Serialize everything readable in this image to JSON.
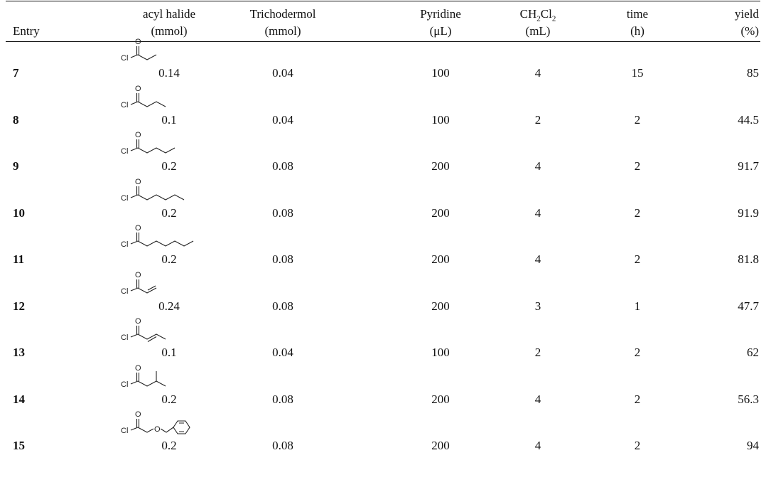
{
  "headers": {
    "entry": [
      "",
      "Entry"
    ],
    "acyl": [
      "acyl halide",
      "(mmol)"
    ],
    "tri": [
      "Trichodermol",
      "(mmol)"
    ],
    "pyr": [
      "Pyridine",
      "(μL)"
    ],
    "ch2": [
      "CH2Cl2",
      "(mL)"
    ],
    "time": [
      "time",
      "(h)"
    ],
    "yield": [
      "yield",
      "(%)"
    ]
  },
  "atom_labels": {
    "chlorine": "Cl",
    "oxygen": "O"
  },
  "rows": [
    {
      "entry": "7",
      "acyl": "0.14",
      "tri": "0.04",
      "pyr": "100",
      "ch2": "4",
      "time": "15",
      "yield": "85",
      "acyl_structure": "propionyl chloride"
    },
    {
      "entry": "8",
      "acyl": "0.1",
      "tri": "0.04",
      "pyr": "100",
      "ch2": "2",
      "time": "2",
      "yield": "44.5",
      "acyl_structure": "butyryl chloride"
    },
    {
      "entry": "9",
      "acyl": "0.2",
      "tri": "0.08",
      "pyr": "200",
      "ch2": "4",
      "time": "2",
      "yield": "91.7",
      "acyl_structure": "valeryl chloride"
    },
    {
      "entry": "10",
      "acyl": "0.2",
      "tri": "0.08",
      "pyr": "200",
      "ch2": "4",
      "time": "2",
      "yield": "91.9",
      "acyl_structure": "hexanoyl chloride"
    },
    {
      "entry": "11",
      "acyl": "0.2",
      "tri": "0.08",
      "pyr": "200",
      "ch2": "4",
      "time": "2",
      "yield": "81.8",
      "acyl_structure": "heptanoyl chloride"
    },
    {
      "entry": "12",
      "acyl": "0.24",
      "tri": "0.08",
      "pyr": "200",
      "ch2": "3",
      "time": "1",
      "yield": "47.7",
      "acyl_structure": "acryloyl chloride"
    },
    {
      "entry": "13",
      "acyl": "0.1",
      "tri": "0.04",
      "pyr": "100",
      "ch2": "2",
      "time": "2",
      "yield": "62",
      "acyl_structure": "crotonoyl chloride"
    },
    {
      "entry": "14",
      "acyl": "0.2",
      "tri": "0.08",
      "pyr": "200",
      "ch2": "4",
      "time": "2",
      "yield": "56.3",
      "acyl_structure": "isovaleryl chloride"
    },
    {
      "entry": "15",
      "acyl": "0.2",
      "tri": "0.08",
      "pyr": "200",
      "ch2": "4",
      "time": "2",
      "yield": "94",
      "acyl_structure": "benzyloxyacetyl chloride"
    }
  ]
}
